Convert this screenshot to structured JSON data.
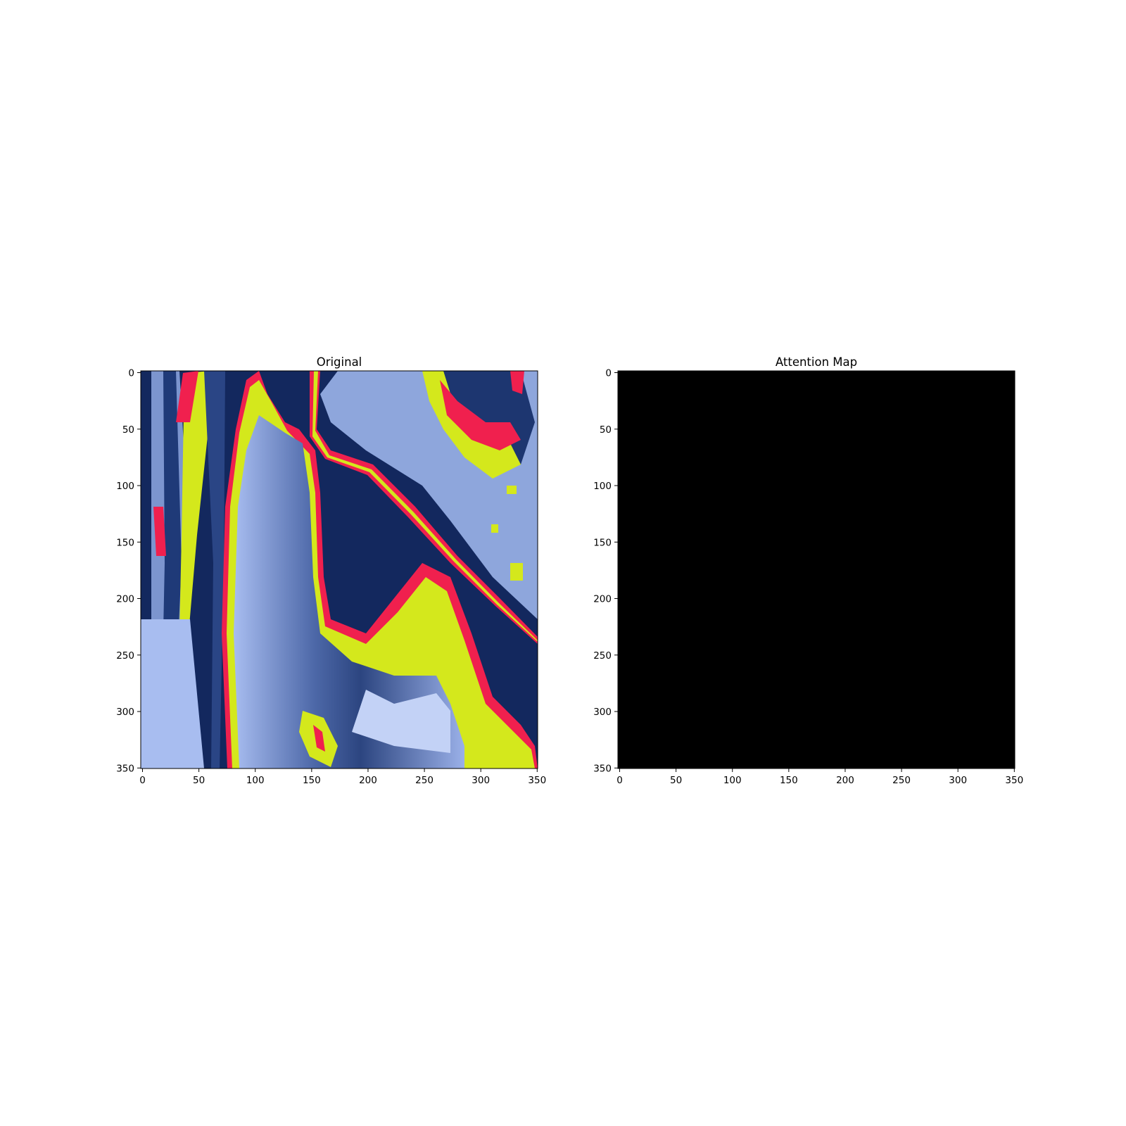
{
  "chart_data": [
    {
      "type": "heatmap",
      "title": "Original",
      "xlabel": "",
      "ylabel": "",
      "xlim": [
        0,
        352
      ],
      "ylim": [
        352,
        0
      ],
      "xticks": [
        0,
        50,
        100,
        150,
        200,
        250,
        300,
        350
      ],
      "yticks": [
        0,
        50,
        100,
        150,
        200,
        250,
        300,
        350
      ],
      "grid": false,
      "colors": {
        "dark_navy": "#13285e",
        "mid_blue": "#3a5590",
        "light_blue": "#a8bdf0",
        "pale_blue": "#c3d2f6",
        "yellow": "#d4e81c",
        "red": "#f0204e"
      }
    },
    {
      "type": "heatmap",
      "title": "Attention Map",
      "xlabel": "",
      "ylabel": "",
      "xlim": [
        0,
        352
      ],
      "ylim": [
        352,
        0
      ],
      "xticks": [
        0,
        50,
        100,
        150,
        200,
        250,
        300,
        350
      ],
      "yticks": [
        0,
        50,
        100,
        150,
        200,
        250,
        300,
        350
      ],
      "grid": false,
      "fill_color": "#000000",
      "value": 0
    }
  ]
}
